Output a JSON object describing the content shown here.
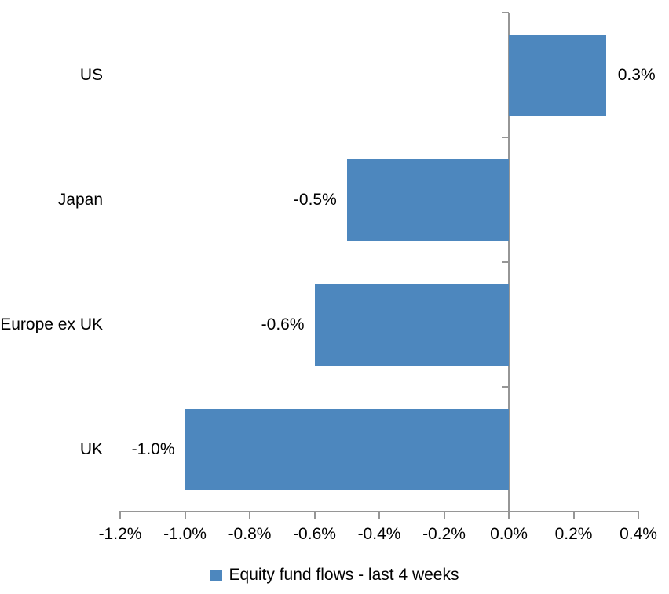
{
  "chart_data": {
    "type": "bar",
    "orientation": "horizontal",
    "title": "",
    "categories": [
      "US",
      "Japan",
      "Europe ex UK",
      "UK"
    ],
    "series": [
      {
        "name": "Equity fund flows - last 4 weeks",
        "values": [
          0.3,
          -0.5,
          -0.6,
          -1.0
        ]
      }
    ],
    "data_labels": [
      "0.3%",
      "-0.5%",
      "-0.6%",
      "-1.0%"
    ],
    "xlabel": "",
    "ylabel": "",
    "xlim": [
      -1.2,
      0.4
    ],
    "x_ticks": [
      -1.2,
      -1.0,
      -0.8,
      -0.6,
      -0.4,
      -0.2,
      0.0,
      0.2,
      0.4
    ],
    "x_tick_labels": [
      "-1.2%",
      "-1.0%",
      "-0.8%",
      "-0.6%",
      "-0.4%",
      "-0.2%",
      "0.0%",
      "0.2%",
      "0.4%"
    ],
    "grid": false,
    "legend": {
      "position": "bottom",
      "label": "Equity fund flows - last 4 weeks"
    },
    "colors": {
      "bar": "#4D87BE",
      "axis": "#969696",
      "text": "#000000",
      "background": "#FFFFFF"
    }
  }
}
